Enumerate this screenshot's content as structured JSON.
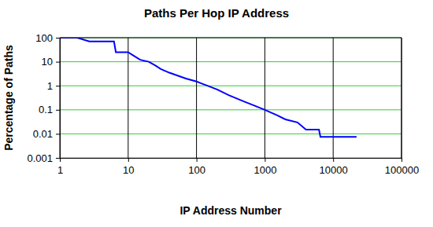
{
  "chart_data": {
    "type": "line",
    "title": "Paths Per Hop IP Address",
    "x_label": "IP Address Number",
    "y_label": "Percentage of Paths",
    "x": [
      1,
      1.8,
      2.7,
      6.2,
      6.6,
      10,
      12,
      15,
      20,
      25,
      30,
      40,
      50,
      70,
      100,
      200,
      300,
      500,
      700,
      1000,
      1500,
      2000,
      3000,
      4000,
      6200,
      6500,
      22000
    ],
    "values": [
      100,
      100,
      70,
      70,
      25,
      25,
      18,
      12,
      10,
      7,
      5,
      3.5,
      2.8,
      2,
      1.5,
      0.7,
      0.4,
      0.22,
      0.15,
      0.1,
      0.06,
      0.04,
      0.03,
      0.015,
      0.015,
      0.0075,
      0.0075
    ],
    "color": "#0000ff",
    "log": true,
    "grid": true,
    "xlim": [
      1,
      100000
    ],
    "xticks": [
      1,
      10,
      100,
      1000,
      10000,
      100000
    ],
    "ylim": [
      0.001,
      100
    ],
    "yticks": [
      0.001,
      0.01,
      0.1,
      1,
      10,
      100
    ]
  }
}
